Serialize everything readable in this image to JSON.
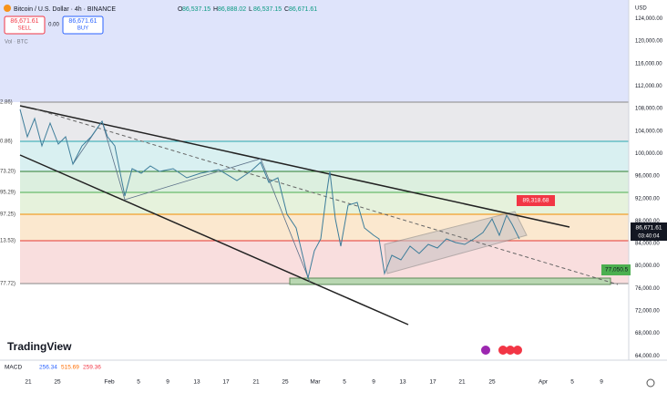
{
  "header": {
    "symbol": "Bitcoin / U.S. Dollar · 4h · BINANCE",
    "ohlc": [
      {
        "key": "O",
        "value": "86,537.15"
      },
      {
        "key": "H",
        "value": "86,888.02"
      },
      {
        "key": "L",
        "value": "86,537.15"
      },
      {
        "key": "C",
        "value": "86,671.61"
      }
    ]
  },
  "trade": {
    "sell_price": "86,671.61",
    "sell": "SELL",
    "spread": "0.00",
    "buy_price": "86,671.61",
    "buy": "BUY"
  },
  "volume": "Vol · BTC",
  "price_axis": {
    "currency": "USD",
    "labels": [
      "124,000.00",
      "120,000.00",
      "116,000.00",
      "112,000.00",
      "108,000.00",
      "104,000.00",
      "100,000.00",
      "96,000.00",
      "92,000.00",
      "88,000.00",
      "84,000.00",
      "80,000.00",
      "76,000.00",
      "72,000.00",
      "68,000.00",
      "64,000.00"
    ]
  },
  "fib_labels": [
    "2.86)",
    "0.86)",
    "73.20)",
    "95.29)",
    "97.25)",
    "13.53)",
    "77.72)"
  ],
  "price_tags": {
    "target": "89,318.68",
    "last": "86,671.61",
    "countdown": "03:40:04",
    "support": "77,050.5"
  },
  "time_axis": [
    "21",
    "25",
    "Feb",
    "5",
    "9",
    "13",
    "17",
    "21",
    "25",
    "Mar",
    "5",
    "9",
    "13",
    "17",
    "21",
    "25",
    "Apr",
    "5",
    "9"
  ],
  "brand": "TradingView",
  "macd": {
    "name": "MACD",
    "values": [
      "256.34",
      "515.69",
      "259.36"
    ]
  }
}
